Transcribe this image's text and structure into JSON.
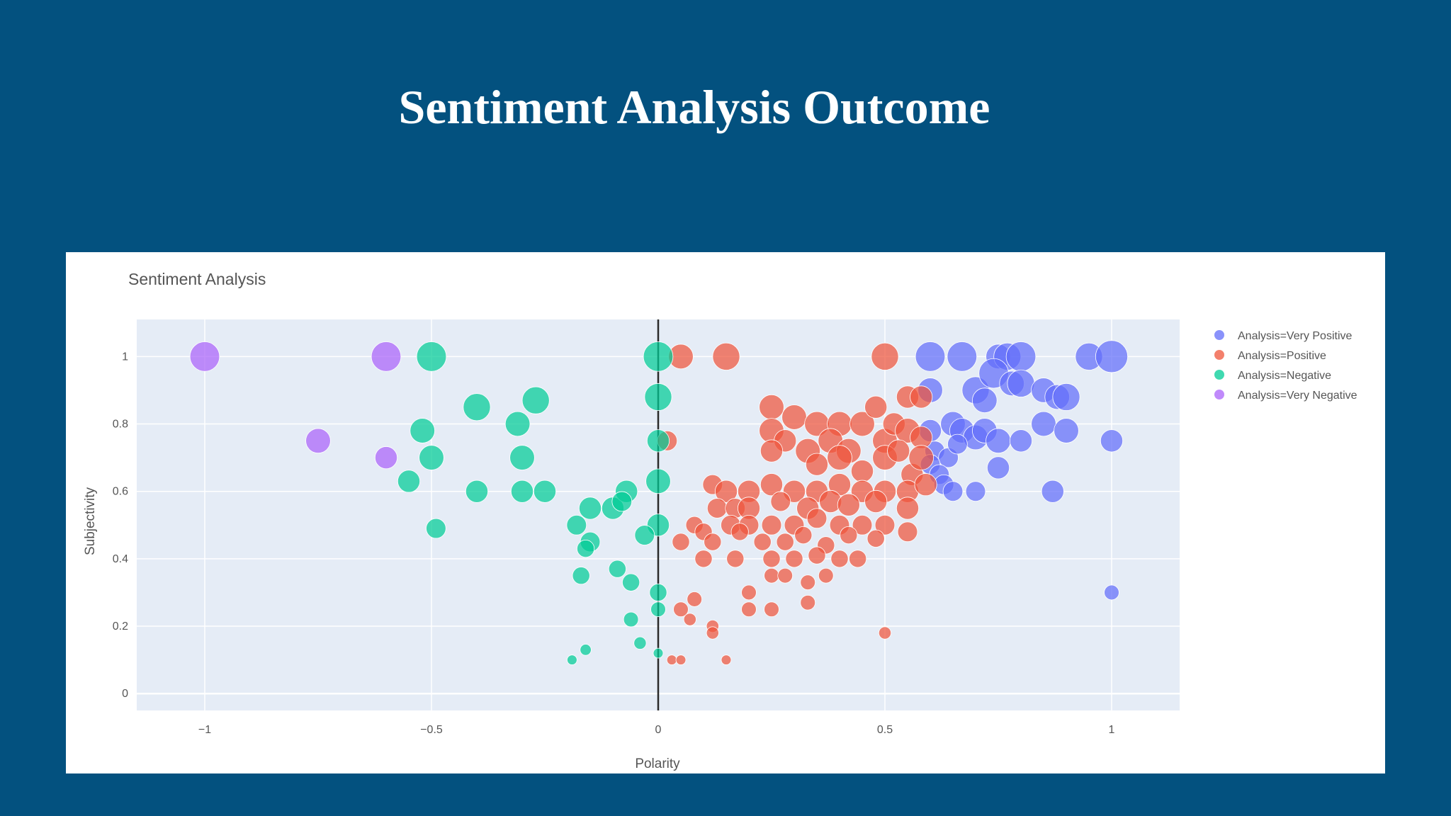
{
  "slide": {
    "title": "Sentiment Analysis Outcome"
  },
  "chart_data": {
    "type": "scatter",
    "title": "Sentiment Analysis",
    "xlabel": "Polarity",
    "ylabel": "Subjectivity",
    "xlim": [
      -1.15,
      1.15
    ],
    "ylim": [
      -0.05,
      1.11
    ],
    "x_ticks": [
      -1,
      -0.5,
      0,
      0.5,
      1
    ],
    "x_tick_labels": [
      "−1",
      "−0.5",
      "0",
      "0.5",
      "1"
    ],
    "y_ticks": [
      0,
      0.2,
      0.4,
      0.6,
      0.8,
      1
    ],
    "y_tick_labels": [
      "0",
      "0.2",
      "0.4",
      "0.6",
      "0.8",
      "1"
    ],
    "grid": true,
    "legend_position": "top-right",
    "zero_line_x": 0,
    "series": [
      {
        "name": "Analysis=Very Positive",
        "color": "#636efa",
        "points": [
          [
            0.6,
            1
          ],
          [
            0.67,
            1
          ],
          [
            0.75,
            1
          ],
          [
            0.77,
            1
          ],
          [
            0.8,
            1
          ],
          [
            0.95,
            1
          ],
          [
            1,
            1
          ],
          [
            0.6,
            0.9
          ],
          [
            0.7,
            0.9
          ],
          [
            0.74,
            0.95
          ],
          [
            0.78,
            0.92
          ],
          [
            0.8,
            0.92
          ],
          [
            0.85,
            0.9
          ],
          [
            0.88,
            0.88
          ],
          [
            0.9,
            0.88
          ],
          [
            0.72,
            0.87
          ],
          [
            0.65,
            0.8
          ],
          [
            0.67,
            0.78
          ],
          [
            0.7,
            0.76
          ],
          [
            0.72,
            0.78
          ],
          [
            0.75,
            0.75
          ],
          [
            0.6,
            0.78
          ],
          [
            0.85,
            0.8
          ],
          [
            0.9,
            0.78
          ],
          [
            0.8,
            0.75
          ],
          [
            1,
            0.75
          ],
          [
            0.61,
            0.72
          ],
          [
            0.64,
            0.7
          ],
          [
            0.66,
            0.74
          ],
          [
            0.6,
            0.68
          ],
          [
            0.62,
            0.65
          ],
          [
            0.63,
            0.62
          ],
          [
            0.65,
            0.6
          ],
          [
            0.7,
            0.6
          ],
          [
            0.75,
            0.67
          ],
          [
            0.87,
            0.6
          ],
          [
            1,
            0.3
          ]
        ],
        "sizes": [
          24,
          24,
          20,
          22,
          24,
          22,
          26,
          20,
          22,
          24,
          20,
          22,
          20,
          20,
          22,
          20,
          20,
          20,
          20,
          20,
          20,
          18,
          20,
          20,
          18,
          18,
          16,
          16,
          16,
          16,
          16,
          16,
          16,
          16,
          18,
          18,
          12
        ]
      },
      {
        "name": "Analysis=Positive",
        "color": "#ef553b",
        "points": [
          [
            0.05,
            1
          ],
          [
            0.15,
            1
          ],
          [
            0.5,
            1
          ],
          [
            0.25,
            0.85
          ],
          [
            0.3,
            0.82
          ],
          [
            0.35,
            0.8
          ],
          [
            0.4,
            0.8
          ],
          [
            0.45,
            0.8
          ],
          [
            0.48,
            0.85
          ],
          [
            0.55,
            0.88
          ],
          [
            0.58,
            0.88
          ],
          [
            0.25,
            0.78
          ],
          [
            0.28,
            0.75
          ],
          [
            0.33,
            0.72
          ],
          [
            0.38,
            0.75
          ],
          [
            0.42,
            0.72
          ],
          [
            0.5,
            0.75
          ],
          [
            0.52,
            0.8
          ],
          [
            0.55,
            0.78
          ],
          [
            0.58,
            0.76
          ],
          [
            0.02,
            0.75
          ],
          [
            0.25,
            0.72
          ],
          [
            0.35,
            0.68
          ],
          [
            0.4,
            0.7
          ],
          [
            0.45,
            0.66
          ],
          [
            0.5,
            0.7
          ],
          [
            0.53,
            0.72
          ],
          [
            0.56,
            0.65
          ],
          [
            0.58,
            0.7
          ],
          [
            0.12,
            0.62
          ],
          [
            0.15,
            0.6
          ],
          [
            0.2,
            0.6
          ],
          [
            0.25,
            0.62
          ],
          [
            0.3,
            0.6
          ],
          [
            0.35,
            0.6
          ],
          [
            0.4,
            0.62
          ],
          [
            0.45,
            0.6
          ],
          [
            0.5,
            0.6
          ],
          [
            0.55,
            0.6
          ],
          [
            0.59,
            0.62
          ],
          [
            0.13,
            0.55
          ],
          [
            0.17,
            0.55
          ],
          [
            0.2,
            0.55
          ],
          [
            0.27,
            0.57
          ],
          [
            0.33,
            0.55
          ],
          [
            0.38,
            0.57
          ],
          [
            0.42,
            0.56
          ],
          [
            0.48,
            0.57
          ],
          [
            0.55,
            0.55
          ],
          [
            0.08,
            0.5
          ],
          [
            0.1,
            0.48
          ],
          [
            0.16,
            0.5
          ],
          [
            0.2,
            0.5
          ],
          [
            0.25,
            0.5
          ],
          [
            0.3,
            0.5
          ],
          [
            0.35,
            0.52
          ],
          [
            0.4,
            0.5
          ],
          [
            0.45,
            0.5
          ],
          [
            0.5,
            0.5
          ],
          [
            0.55,
            0.48
          ],
          [
            0.05,
            0.45
          ],
          [
            0.12,
            0.45
          ],
          [
            0.18,
            0.48
          ],
          [
            0.23,
            0.45
          ],
          [
            0.28,
            0.45
          ],
          [
            0.32,
            0.47
          ],
          [
            0.37,
            0.44
          ],
          [
            0.42,
            0.47
          ],
          [
            0.48,
            0.46
          ],
          [
            0.1,
            0.4
          ],
          [
            0.17,
            0.4
          ],
          [
            0.25,
            0.4
          ],
          [
            0.3,
            0.4
          ],
          [
            0.35,
            0.41
          ],
          [
            0.4,
            0.4
          ],
          [
            0.44,
            0.4
          ],
          [
            0.25,
            0.35
          ],
          [
            0.28,
            0.35
          ],
          [
            0.33,
            0.33
          ],
          [
            0.37,
            0.35
          ],
          [
            0.2,
            0.3
          ],
          [
            0.08,
            0.28
          ],
          [
            0.33,
            0.27
          ],
          [
            0.2,
            0.25
          ],
          [
            0.25,
            0.25
          ],
          [
            0.05,
            0.25
          ],
          [
            0.07,
            0.22
          ],
          [
            0.12,
            0.2
          ],
          [
            0.12,
            0.18
          ],
          [
            0.5,
            0.18
          ],
          [
            0.03,
            0.1
          ],
          [
            0.05,
            0.1
          ],
          [
            0.15,
            0.1
          ]
        ],
        "sizes": [
          20,
          22,
          22,
          20,
          20,
          20,
          20,
          20,
          18,
          18,
          18,
          20,
          18,
          20,
          20,
          20,
          20,
          18,
          20,
          18,
          16,
          18,
          18,
          20,
          18,
          20,
          18,
          18,
          20,
          16,
          18,
          18,
          18,
          18,
          18,
          18,
          18,
          18,
          18,
          18,
          16,
          16,
          18,
          16,
          18,
          18,
          18,
          18,
          18,
          14,
          14,
          16,
          16,
          16,
          16,
          16,
          16,
          16,
          16,
          16,
          14,
          14,
          14,
          14,
          14,
          14,
          14,
          14,
          14,
          14,
          14,
          14,
          14,
          14,
          14,
          14,
          12,
          12,
          12,
          12,
          12,
          12,
          12,
          12,
          12,
          12,
          10,
          10,
          10,
          10,
          8,
          8,
          8
        ]
      },
      {
        "name": "Analysis=Negative",
        "color": "#00cc96",
        "points": [
          [
            -0.5,
            1
          ],
          [
            0,
            1
          ],
          [
            0,
            0.88
          ],
          [
            -0.4,
            0.85
          ],
          [
            -0.27,
            0.87
          ],
          [
            -0.31,
            0.8
          ],
          [
            -0.52,
            0.78
          ],
          [
            -0.5,
            0.7
          ],
          [
            -0.3,
            0.7
          ],
          [
            -0.55,
            0.63
          ],
          [
            -0.4,
            0.6
          ],
          [
            -0.3,
            0.6
          ],
          [
            -0.25,
            0.6
          ],
          [
            0,
            0.75
          ],
          [
            0,
            0.63
          ],
          [
            0,
            0.5
          ],
          [
            -0.15,
            0.55
          ],
          [
            -0.1,
            0.55
          ],
          [
            -0.07,
            0.6
          ],
          [
            -0.08,
            0.57
          ],
          [
            -0.49,
            0.49
          ],
          [
            -0.18,
            0.5
          ],
          [
            -0.15,
            0.45
          ],
          [
            -0.03,
            0.47
          ],
          [
            -0.16,
            0.43
          ],
          [
            -0.09,
            0.37
          ],
          [
            -0.06,
            0.33
          ],
          [
            -0.17,
            0.35
          ],
          [
            0,
            0.3
          ],
          [
            0,
            0.25
          ],
          [
            -0.06,
            0.22
          ],
          [
            -0.04,
            0.15
          ],
          [
            -0.16,
            0.13
          ],
          [
            -0.19,
            0.1
          ],
          [
            0,
            0.12
          ]
        ],
        "sizes": [
          24,
          24,
          22,
          22,
          22,
          20,
          20,
          20,
          20,
          18,
          18,
          18,
          18,
          18,
          20,
          18,
          18,
          18,
          18,
          16,
          16,
          16,
          16,
          16,
          14,
          14,
          14,
          14,
          14,
          12,
          12,
          10,
          9,
          8,
          8
        ]
      },
      {
        "name": "Analysis=Very Negative",
        "color": "#ab63fa",
        "points": [
          [
            -1,
            1
          ],
          [
            -0.6,
            1
          ],
          [
            -0.75,
            0.75
          ],
          [
            -0.6,
            0.7
          ]
        ],
        "sizes": [
          24,
          24,
          20,
          18
        ]
      }
    ]
  }
}
